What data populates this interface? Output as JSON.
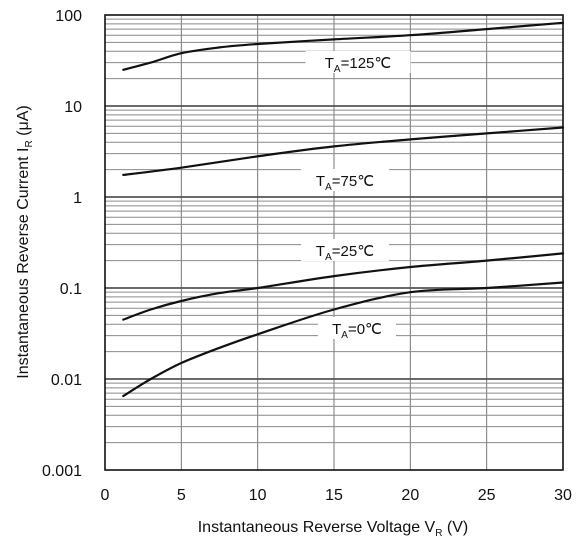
{
  "chart_data": {
    "type": "line",
    "title": "",
    "xlabel": {
      "main": "Instantaneous Reverse Voltage  V",
      "sub": "R",
      "unit": "  (V)"
    },
    "ylabel": {
      "main": "Instantaneous Reverse Current  I",
      "sub": "R",
      "unit": "  (μA)"
    },
    "xlim": [
      0,
      30
    ],
    "ylim": [
      0.001,
      100
    ],
    "y_scale": "log",
    "grid": true,
    "x_ticks": [
      "0",
      "5",
      "10",
      "15",
      "20",
      "25",
      "30"
    ],
    "y_ticks": [
      "0.001",
      "0.01",
      "0.1",
      "1",
      "10",
      "100"
    ],
    "series": [
      {
        "name": "TA=125°C",
        "label": {
          "pre": "T",
          "sub": "A",
          "post": "=125℃"
        },
        "x": [
          1.2,
          3,
          5,
          7.5,
          10,
          15,
          20,
          25,
          30
        ],
        "y": [
          25,
          30,
          38,
          44,
          48,
          54,
          60,
          70,
          82
        ]
      },
      {
        "name": "TA=75°C",
        "label": {
          "pre": "T",
          "sub": "A",
          "post": "=75℃"
        },
        "x": [
          1.2,
          5,
          10,
          15,
          20,
          25,
          30
        ],
        "y": [
          1.75,
          2.1,
          2.8,
          3.6,
          4.3,
          5.0,
          5.8
        ]
      },
      {
        "name": "TA=25°C",
        "label": {
          "pre": "T",
          "sub": "A",
          "post": "=25℃"
        },
        "x": [
          1.2,
          3,
          5,
          7.5,
          10,
          15,
          20,
          25,
          30
        ],
        "y": [
          0.045,
          0.058,
          0.072,
          0.088,
          0.1,
          0.135,
          0.17,
          0.2,
          0.24
        ]
      },
      {
        "name": "TA=0°C",
        "label": {
          "pre": "T",
          "sub": "A",
          "post": "=0℃"
        },
        "x": [
          1.2,
          3,
          5,
          7.5,
          10,
          15,
          20,
          25,
          30
        ],
        "y": [
          0.0065,
          0.01,
          0.015,
          0.022,
          0.031,
          0.058,
          0.09,
          0.1,
          0.115
        ]
      }
    ]
  }
}
